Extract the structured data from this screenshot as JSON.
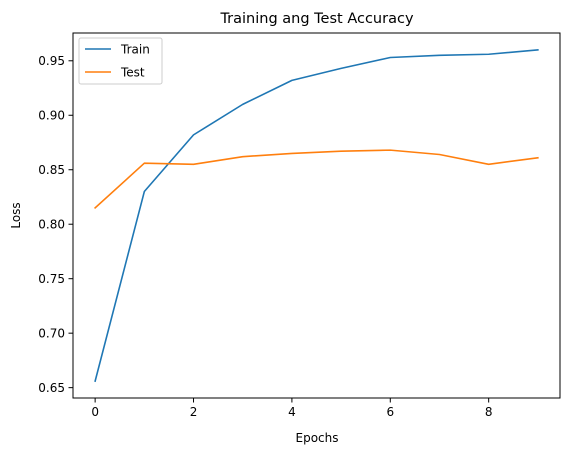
{
  "chart_data": {
    "type": "line",
    "title": "Training ang Test Accuracy",
    "xlabel": "Epochs",
    "ylabel": "Loss",
    "x": [
      0,
      1,
      2,
      3,
      4,
      5,
      6,
      7,
      8,
      9
    ],
    "xlim": [
      -0.45,
      9.45
    ],
    "ylim": [
      0.6405,
      0.9755
    ],
    "xticks": [
      0,
      2,
      4,
      6,
      8
    ],
    "xtick_labels": [
      "0",
      "2",
      "4",
      "6",
      "8"
    ],
    "yticks": [
      0.65,
      0.7,
      0.75,
      0.8,
      0.85,
      0.9,
      0.95
    ],
    "ytick_labels": [
      "0.65",
      "0.70",
      "0.75",
      "0.80",
      "0.85",
      "0.90",
      "0.95"
    ],
    "grid": false,
    "legend_position": "top-left",
    "series": [
      {
        "name": "Train",
        "color": "#1f77b4",
        "values": [
          0.656,
          0.83,
          0.882,
          0.91,
          0.932,
          0.943,
          0.953,
          0.955,
          0.956,
          0.96
        ]
      },
      {
        "name": "Test",
        "color": "#ff7f0e",
        "values": [
          0.815,
          0.856,
          0.855,
          0.862,
          0.865,
          0.867,
          0.868,
          0.864,
          0.855,
          0.861
        ]
      }
    ]
  }
}
